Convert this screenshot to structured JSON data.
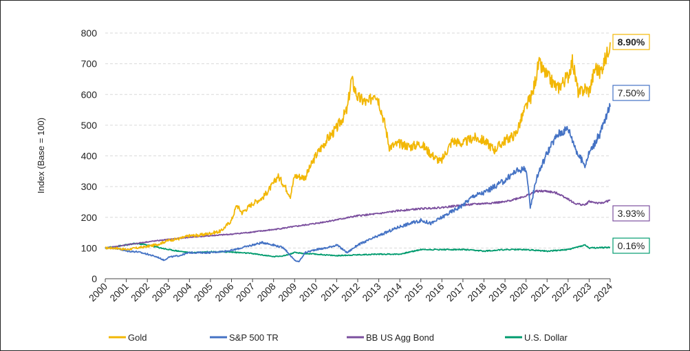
{
  "chart_data": {
    "type": "line",
    "ylabel": "Index (Base = 100)",
    "xlabel": "",
    "ylim": [
      0,
      800
    ],
    "xlim": [
      2000,
      2024
    ],
    "yticks": [
      0,
      100,
      200,
      300,
      400,
      500,
      600,
      700,
      800
    ],
    "xticks": [
      "2000",
      "2001",
      "2002",
      "2003",
      "2004",
      "2005",
      "2006",
      "2007",
      "2008",
      "2009",
      "2010",
      "2011",
      "2012",
      "2013",
      "2014",
      "2015",
      "2016",
      "2017",
      "2018",
      "2019",
      "2020",
      "2021",
      "2022",
      "2023",
      "2024"
    ],
    "grid": "horizontal-dashed",
    "legend": "bottom",
    "series": [
      {
        "name": "Gold",
        "color": "#F2B705",
        "end_label": "8.90%",
        "end_label_bold": true,
        "x": [
          2000,
          2000.5,
          2001,
          2001.5,
          2002,
          2002.5,
          2003,
          2003.5,
          2004,
          2004.5,
          2005,
          2005.5,
          2006,
          2006.25,
          2006.5,
          2007,
          2007.5,
          2008,
          2008.2,
          2008.5,
          2008.8,
          2009,
          2009.5,
          2010,
          2010.5,
          2011,
          2011.5,
          2011.7,
          2012,
          2012.5,
          2012.8,
          2013,
          2013.3,
          2013.5,
          2014,
          2014.5,
          2015,
          2015.5,
          2015.95,
          2016.5,
          2017,
          2017.5,
          2018,
          2018.5,
          2019,
          2019.5,
          2020,
          2020.3,
          2020.6,
          2021,
          2021.5,
          2022,
          2022.2,
          2022.5,
          2022.8,
          2023,
          2023.3,
          2023.5,
          2023.8,
          2024
        ],
        "y": [
          100,
          100,
          95,
          100,
          105,
          112,
          125,
          130,
          140,
          142,
          148,
          155,
          190,
          240,
          215,
          245,
          265,
          310,
          335,
          305,
          270,
          335,
          330,
          400,
          450,
          490,
          550,
          650,
          590,
          570,
          610,
          580,
          500,
          430,
          440,
          430,
          440,
          405,
          380,
          450,
          440,
          460,
          450,
          420,
          450,
          470,
          560,
          600,
          700,
          660,
          620,
          660,
          710,
          600,
          620,
          610,
          690,
          670,
          720,
          770
        ]
      },
      {
        "name": "S&P 500 TR",
        "color": "#4472C4",
        "end_label": "7.50%",
        "end_label_bold": false,
        "x": [
          2000,
          2000.5,
          2001,
          2001.5,
          2002,
          2002.5,
          2002.8,
          2003,
          2003.5,
          2004,
          2005,
          2006,
          2007,
          2007.5,
          2008,
          2008.5,
          2008.8,
          2009,
          2009.2,
          2009.5,
          2010,
          2010.5,
          2011,
          2011.5,
          2011.8,
          2012,
          2013,
          2014,
          2015,
          2015.5,
          2016,
          2017,
          2017.5,
          2018,
          2018.5,
          2019,
          2019.5,
          2020,
          2020.2,
          2020.5,
          2021,
          2021.5,
          2022,
          2022.5,
          2022.8,
          2023,
          2023.5,
          2024
        ],
        "y": [
          100,
          100,
          90,
          88,
          80,
          70,
          60,
          70,
          75,
          85,
          85,
          92,
          110,
          118,
          110,
          100,
          75,
          60,
          55,
          85,
          95,
          100,
          110,
          85,
          100,
          110,
          140,
          170,
          190,
          180,
          200,
          240,
          270,
          280,
          300,
          320,
          350,
          360,
          230,
          330,
          410,
          470,
          490,
          400,
          370,
          410,
          470,
          560
        ]
      },
      {
        "name": "BB US Agg Bond",
        "color": "#7B4F9E",
        "end_label": "3.93%",
        "end_label_bold": false,
        "x": [
          2000,
          2001,
          2002,
          2003,
          2004,
          2005,
          2006,
          2007,
          2008,
          2009,
          2010,
          2011,
          2012,
          2013,
          2014,
          2015,
          2016,
          2017,
          2018,
          2019,
          2020,
          2020.5,
          2021,
          2021.5,
          2022,
          2022.3,
          2022.8,
          2023,
          2023.5,
          2024
        ],
        "y": [
          100,
          110,
          120,
          128,
          135,
          140,
          145,
          152,
          160,
          170,
          180,
          192,
          205,
          212,
          222,
          228,
          232,
          240,
          245,
          250,
          270,
          285,
          285,
          278,
          260,
          245,
          240,
          252,
          245,
          255
        ]
      },
      {
        "name": "U.S. Dollar",
        "color": "#009B6E",
        "end_label": "0.16%",
        "end_label_bold": false,
        "x": [
          2000,
          2001,
          2001.5,
          2002,
          2003,
          2004,
          2005,
          2006,
          2007,
          2008,
          2008.5,
          2009,
          2009.5,
          2010,
          2011,
          2012,
          2013,
          2014,
          2015,
          2016,
          2017,
          2018,
          2019,
          2020,
          2021,
          2022,
          2022.8,
          2023,
          2024
        ],
        "y": [
          100,
          110,
          115,
          110,
          95,
          85,
          88,
          87,
          82,
          72,
          75,
          85,
          82,
          80,
          75,
          78,
          80,
          80,
          95,
          95,
          95,
          90,
          95,
          95,
          90,
          95,
          110,
          100,
          102
        ]
      }
    ]
  }
}
